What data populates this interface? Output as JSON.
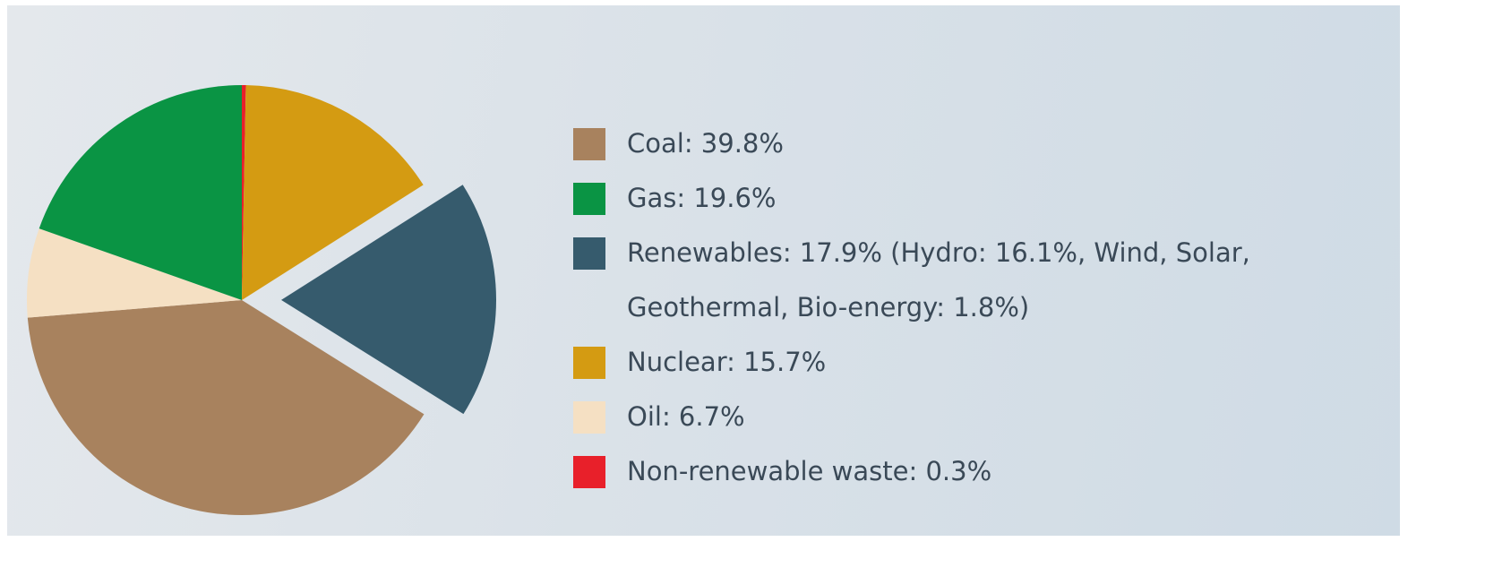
{
  "chart_data": {
    "type": "pie",
    "categories": [
      "Coal: 39.8%",
      "Gas: 19.6%",
      "Renewables: 17.9% (Hydro: 16.1%, Wind, Solar, Geothermal, Bio-energy: 1.8%)",
      "Nuclear: 15.7%",
      "Oil: 6.7%",
      "Non-renewable waste: 0.3%"
    ],
    "values": [
      39.8,
      19.6,
      17.9,
      15.7,
      6.7,
      0.3
    ],
    "colors": [
      "#a8825e",
      "#0a9444",
      "#365b6d",
      "#d49b12",
      "#f5e0c3",
      "#e8202a"
    ]
  }
}
